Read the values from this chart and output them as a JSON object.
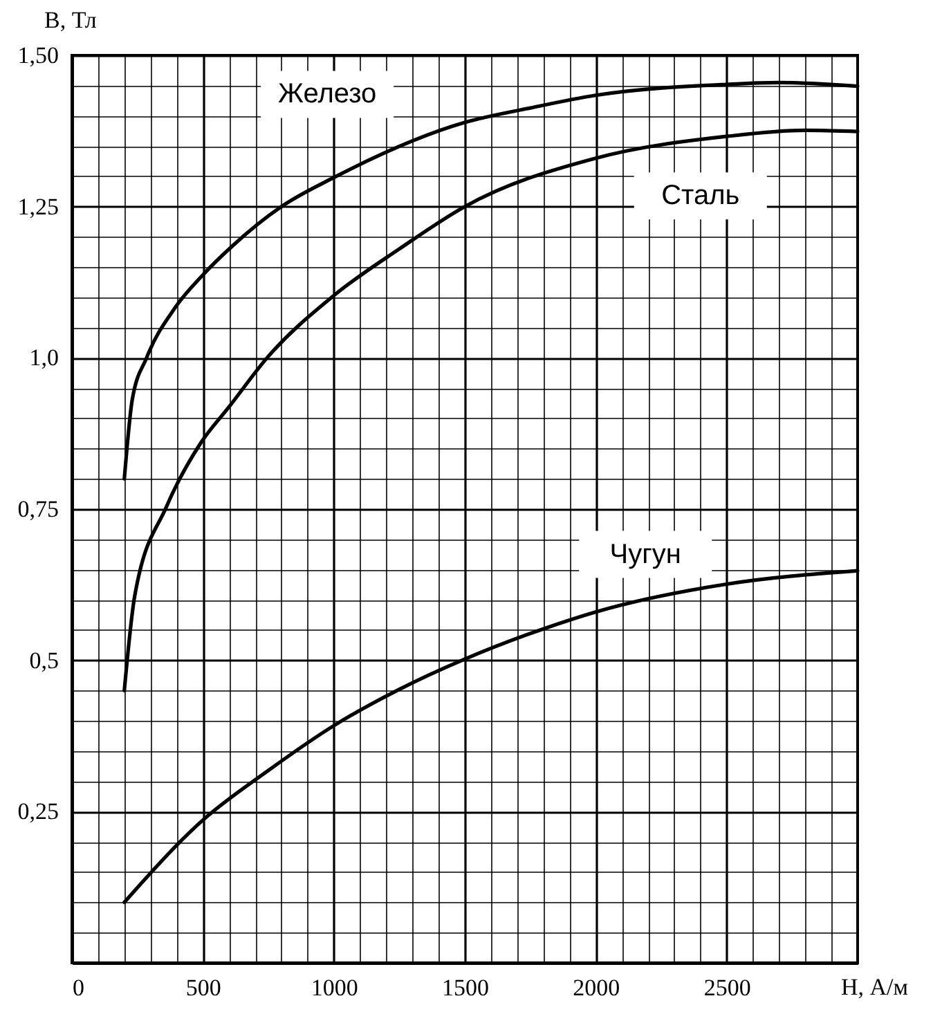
{
  "chart_data": {
    "type": "line",
    "ylabel": "B, Тл",
    "xlabel": "H, А/м",
    "xlim": [
      0,
      3000
    ],
    "ylim": [
      0,
      1.5
    ],
    "xticks": [
      0,
      {
        "value": 100,
        "label": null
      },
      {
        "value": 200,
        "label": null
      },
      {
        "value": 300,
        "label": null
      },
      {
        "value": 400,
        "label": null
      },
      500,
      {
        "value": 600,
        "label": null
      },
      {
        "value": 700,
        "label": null
      },
      {
        "value": 800,
        "label": null
      },
      {
        "value": 900,
        "label": null
      },
      1000,
      {
        "value": 1100,
        "label": null
      },
      {
        "value": 1200,
        "label": null
      },
      {
        "value": 1300,
        "label": null
      },
      {
        "value": 1400,
        "label": null
      },
      1500,
      {
        "value": 1600,
        "label": null
      },
      {
        "value": 1700,
        "label": null
      },
      {
        "value": 1800,
        "label": null
      },
      {
        "value": 1900,
        "label": null
      },
      2000,
      {
        "value": 2100,
        "label": null
      },
      {
        "value": 2200,
        "label": null
      },
      {
        "value": 2300,
        "label": null
      },
      {
        "value": 2400,
        "label": null
      },
      2500,
      {
        "value": 2600,
        "label": null
      },
      {
        "value": 2700,
        "label": null
      },
      {
        "value": 2800,
        "label": null
      },
      {
        "value": 2900,
        "label": null
      },
      {
        "value": 3000,
        "label": null
      }
    ],
    "yticks": [
      {
        "value": 0,
        "label": null
      },
      {
        "value": 0.05,
        "label": null
      },
      {
        "value": 0.1,
        "label": null
      },
      {
        "value": 0.15,
        "label": null
      },
      {
        "value": 0.2,
        "label": null
      },
      {
        "value": 0.25,
        "label": "0,25"
      },
      {
        "value": 0.3,
        "label": null
      },
      {
        "value": 0.35,
        "label": null
      },
      {
        "value": 0.4,
        "label": null
      },
      {
        "value": 0.45,
        "label": null
      },
      {
        "value": 0.5,
        "label": "0,5"
      },
      {
        "value": 0.55,
        "label": null
      },
      {
        "value": 0.6,
        "label": null
      },
      {
        "value": 0.65,
        "label": null
      },
      {
        "value": 0.7,
        "label": null
      },
      {
        "value": 0.75,
        "label": "0,75"
      },
      {
        "value": 0.8,
        "label": null
      },
      {
        "value": 0.85,
        "label": null
      },
      {
        "value": 0.9,
        "label": null
      },
      {
        "value": 0.95,
        "label": null
      },
      {
        "value": 1.0,
        "label": "1,0"
      },
      {
        "value": 1.05,
        "label": null
      },
      {
        "value": 1.1,
        "label": null
      },
      {
        "value": 1.15,
        "label": null
      },
      {
        "value": 1.2,
        "label": null
      },
      {
        "value": 1.25,
        "label": "1,25"
      },
      {
        "value": 1.3,
        "label": null
      },
      {
        "value": 1.35,
        "label": null
      },
      {
        "value": 1.4,
        "label": null
      },
      {
        "value": 1.45,
        "label": null
      },
      {
        "value": 1.5,
        "label": "1,50"
      }
    ],
    "grid": true,
    "legend": false,
    "marker": "none",
    "line_style": "solid",
    "series": [
      {
        "name": "Железо",
        "color": "#000000",
        "x": [
          200,
          210,
          230,
          285,
          394,
          500,
          613,
          800,
          1000,
          1500,
          1750,
          2000,
          2500,
          2700,
          3000
        ],
        "values": [
          0.8,
          0.85,
          0.93,
          1.0,
          1.083,
          1.137,
          1.185,
          1.25,
          1.298,
          1.389,
          1.413,
          1.434,
          1.452,
          1.455,
          1.449
        ]
      },
      {
        "name": "Сталь",
        "color": "#000000",
        "x": [
          200,
          240,
          361,
          493,
          600,
          745,
          1000,
          1250,
          1500,
          2000,
          2500,
          2800,
          3000
        ],
        "values": [
          0.45,
          0.607,
          0.754,
          0.86,
          0.919,
          1.0,
          1.103,
          1.18,
          1.25,
          1.33,
          1.366,
          1.376,
          1.374
        ]
      },
      {
        "name": "Чугун",
        "color": "#000000",
        "x": [
          200,
          500,
          750,
          1000,
          1250,
          1500,
          1800,
          2000,
          2500,
          3000
        ],
        "values": [
          0.1,
          0.236,
          0.318,
          0.392,
          0.452,
          0.502,
          0.552,
          0.58,
          0.626,
          0.648
        ]
      }
    ]
  }
}
